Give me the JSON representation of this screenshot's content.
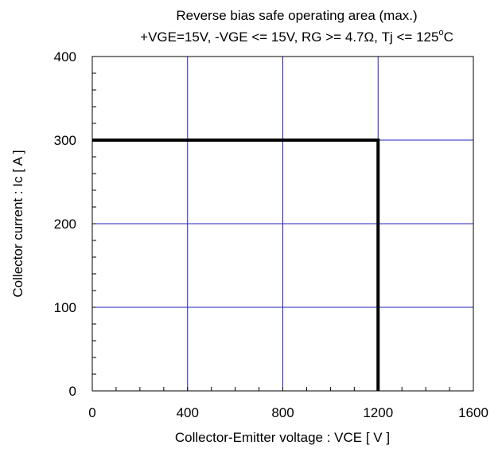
{
  "chart_data": {
    "type": "line",
    "title": "Reverse bias safe operating area (max.)",
    "subtitle": {
      "pre": "+VGE=15V, -VGE <= 15V, RG >= 4.7Ω,  Tj <= 125",
      "sup": "o",
      "post": "C"
    },
    "xlabel": "Collector-Emitter voltage : VCE [ V ]",
    "ylabel": "Collector current : Ic [ A ]",
    "xlim": [
      0,
      1600
    ],
    "ylim": [
      0,
      400
    ],
    "xticks": [
      0,
      400,
      800,
      1200,
      1600
    ],
    "yticks": [
      0,
      100,
      200,
      300,
      400
    ],
    "xtick_labels": [
      "0",
      "400",
      "800",
      "1200",
      "1600"
    ],
    "ytick_labels": [
      "0",
      "100",
      "200",
      "300",
      "400"
    ],
    "grid": true,
    "colors": {
      "grid": "#2020c0",
      "series": "#000000",
      "frame": "#000000"
    },
    "series": [
      {
        "x": [
          0,
          1200,
          1200
        ],
        "y": [
          300,
          300,
          0
        ]
      }
    ]
  }
}
